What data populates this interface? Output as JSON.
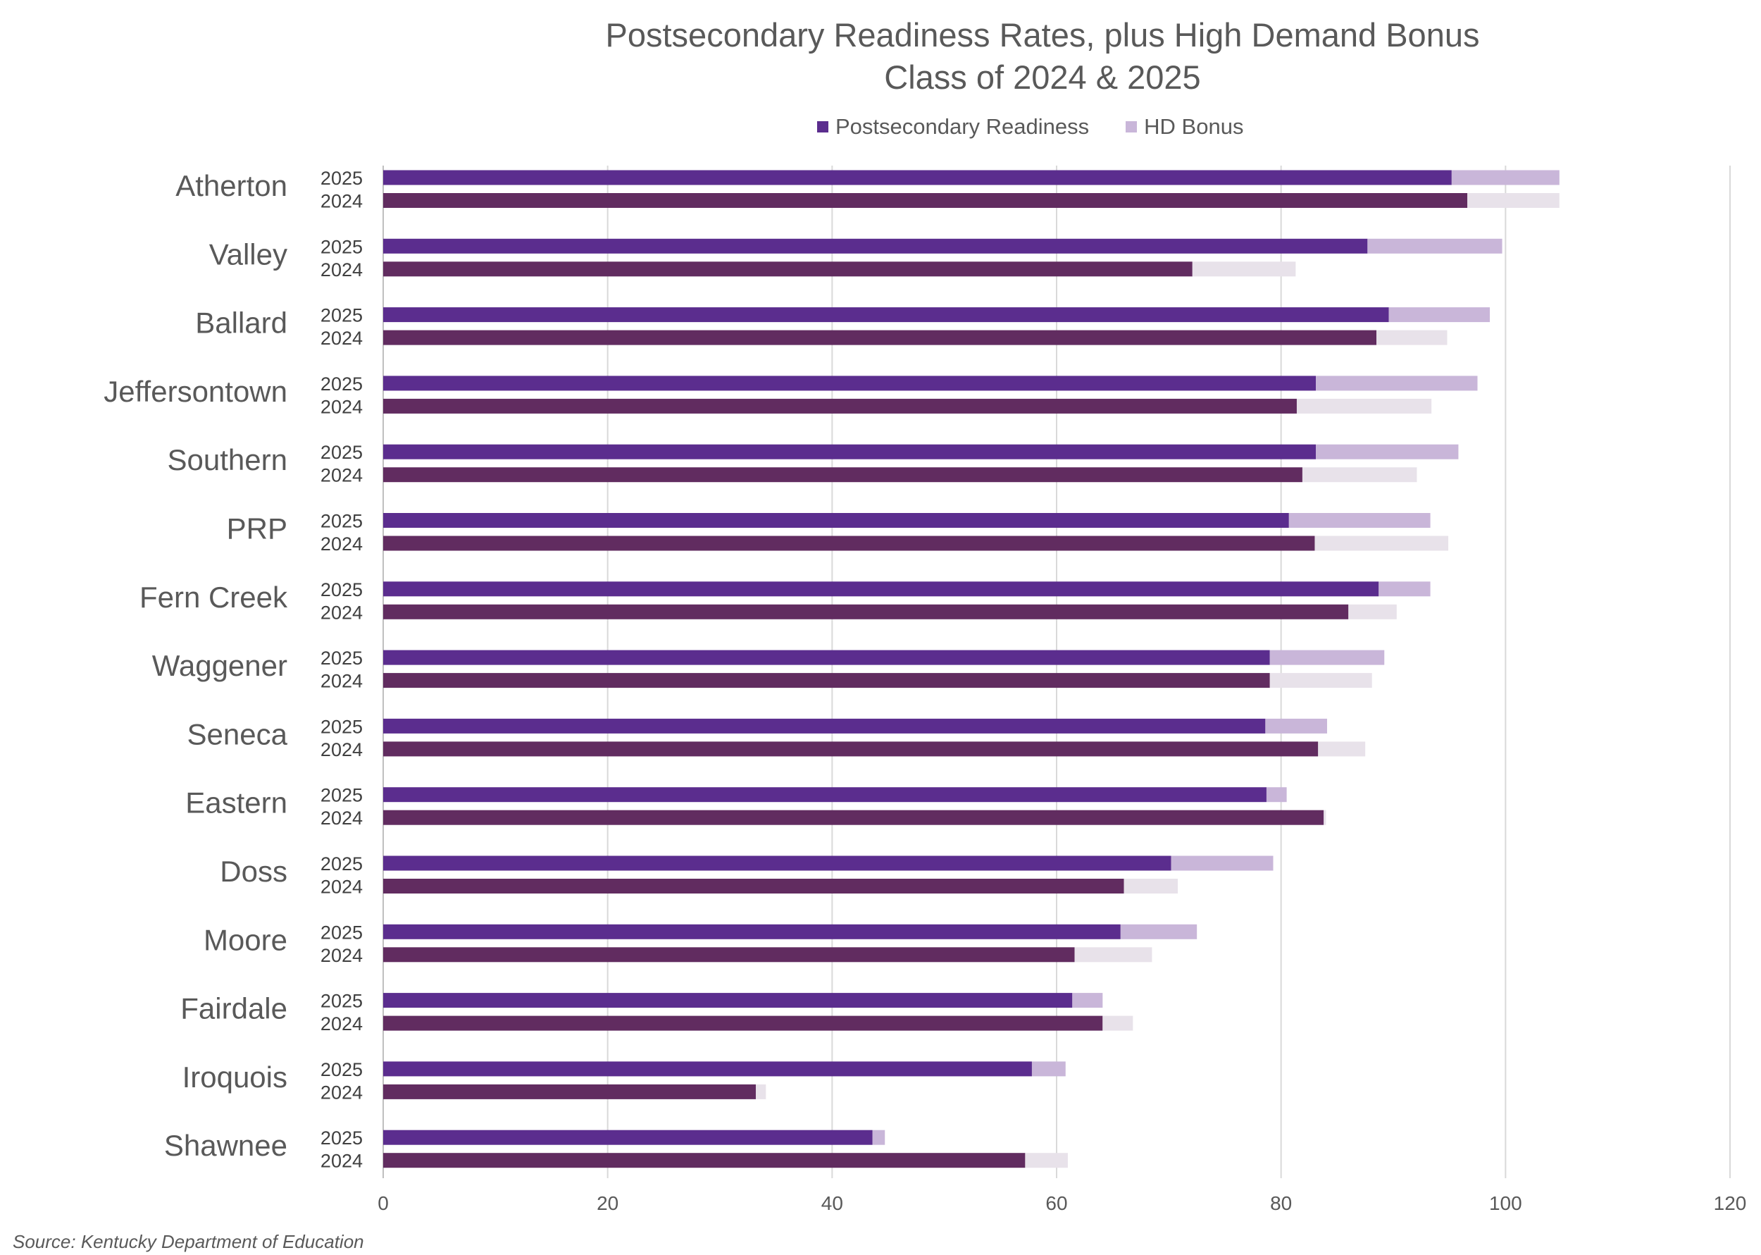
{
  "chart_data": {
    "type": "bar",
    "orientation": "horizontal",
    "stacked": true,
    "title": "Postsecondary Readiness Rates, plus High Demand Bonus",
    "subtitle": "Class of 2024 & 2025",
    "source": "Source: Kentucky Department of Education",
    "legend": {
      "position": "top",
      "items": [
        {
          "name": "Postsecondary Readiness",
          "color": "#5b2d8e"
        },
        {
          "name": "HD Bonus",
          "color": "#c9b6d9"
        }
      ]
    },
    "xlim": [
      0,
      120
    ],
    "x_ticks": [
      "0",
      "20",
      "40",
      "60",
      "80",
      "100",
      "120"
    ],
    "grid": true,
    "colors": {
      "readiness_2025": "#5b2d8e",
      "readiness_2024": "#612c60",
      "bonus_2025": "#c9b6d9",
      "bonus_2024": "#e8e2ea"
    },
    "schools": [
      {
        "name": "Atherton",
        "bars": [
          {
            "year": "2025",
            "readiness": 95.2,
            "bonus": 9.6
          },
          {
            "year": "2024",
            "readiness": 96.6,
            "bonus": 8.2
          }
        ]
      },
      {
        "name": "Valley",
        "bars": [
          {
            "year": "2025",
            "readiness": 87.7,
            "bonus": 12.0
          },
          {
            "year": "2024",
            "readiness": 72.1,
            "bonus": 9.2
          }
        ]
      },
      {
        "name": "Ballard",
        "bars": [
          {
            "year": "2025",
            "readiness": 89.6,
            "bonus": 9.0
          },
          {
            "year": "2024",
            "readiness": 88.5,
            "bonus": 6.3
          }
        ]
      },
      {
        "name": "Jeffersontown",
        "bars": [
          {
            "year": "2025",
            "readiness": 83.1,
            "bonus": 14.4
          },
          {
            "year": "2024",
            "readiness": 81.4,
            "bonus": 12.0
          }
        ]
      },
      {
        "name": "Southern",
        "bars": [
          {
            "year": "2025",
            "readiness": 83.1,
            "bonus": 12.7
          },
          {
            "year": "2024",
            "readiness": 81.9,
            "bonus": 10.2
          }
        ]
      },
      {
        "name": "PRP",
        "bars": [
          {
            "year": "2025",
            "readiness": 80.7,
            "bonus": 12.6
          },
          {
            "year": "2024",
            "readiness": 83.0,
            "bonus": 11.9
          }
        ]
      },
      {
        "name": "Fern Creek",
        "bars": [
          {
            "year": "2025",
            "readiness": 88.7,
            "bonus": 4.6
          },
          {
            "year": "2024",
            "readiness": 86.0,
            "bonus": 4.3
          }
        ]
      },
      {
        "name": "Waggener",
        "bars": [
          {
            "year": "2025",
            "readiness": 79.0,
            "bonus": 10.2
          },
          {
            "year": "2024",
            "readiness": 79.0,
            "bonus": 9.1
          }
        ]
      },
      {
        "name": "Seneca",
        "bars": [
          {
            "year": "2025",
            "readiness": 78.6,
            "bonus": 5.5
          },
          {
            "year": "2024",
            "readiness": 83.3,
            "bonus": 4.2
          }
        ]
      },
      {
        "name": "Eastern",
        "bars": [
          {
            "year": "2025",
            "readiness": 78.7,
            "bonus": 1.8
          },
          {
            "year": "2024",
            "readiness": 83.8,
            "bonus": 0.2
          }
        ]
      },
      {
        "name": "Doss",
        "bars": [
          {
            "year": "2025",
            "readiness": 70.2,
            "bonus": 9.1
          },
          {
            "year": "2024",
            "readiness": 66.0,
            "bonus": 4.8
          }
        ]
      },
      {
        "name": "Moore",
        "bars": [
          {
            "year": "2025",
            "readiness": 65.7,
            "bonus": 6.8
          },
          {
            "year": "2024",
            "readiness": 61.6,
            "bonus": 6.9
          }
        ]
      },
      {
        "name": "Fairdale",
        "bars": [
          {
            "year": "2025",
            "readiness": 61.4,
            "bonus": 2.7
          },
          {
            "year": "2024",
            "readiness": 64.1,
            "bonus": 2.7
          }
        ]
      },
      {
        "name": "Iroquois",
        "bars": [
          {
            "year": "2025",
            "readiness": 57.8,
            "bonus": 3.0
          },
          {
            "year": "2024",
            "readiness": 33.2,
            "bonus": 0.9
          }
        ]
      },
      {
        "name": "Shawnee",
        "bars": [
          {
            "year": "2025",
            "readiness": 43.6,
            "bonus": 1.1
          },
          {
            "year": "2024",
            "readiness": 57.2,
            "bonus": 3.8
          }
        ]
      }
    ]
  }
}
